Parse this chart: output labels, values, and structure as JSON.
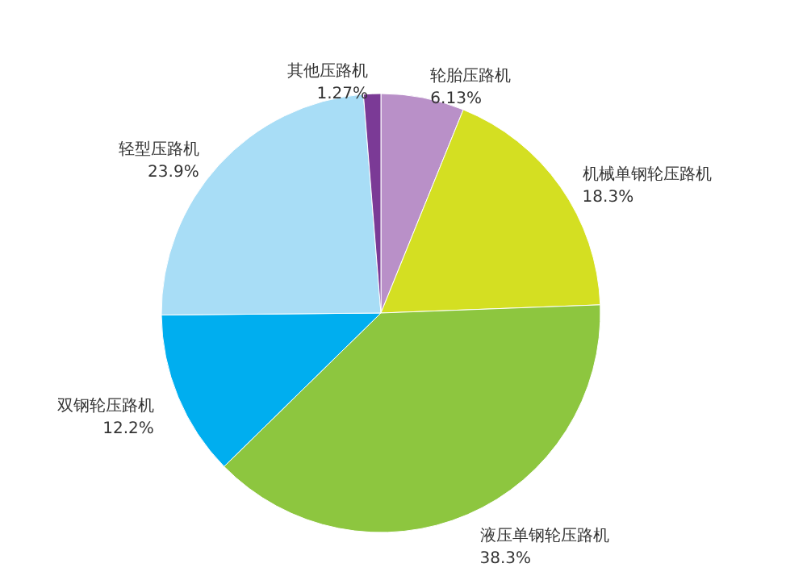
{
  "chart_data": {
    "type": "pie",
    "categories": [
      "轮胎压路机",
      "机械单钢轮压路机",
      "液压单钢轮压路机",
      "双钢轮压路机",
      "轻型压路机",
      "其他压路机"
    ],
    "values": [
      6.13,
      18.3,
      38.3,
      12.2,
      23.9,
      1.27
    ],
    "colors": [
      "#b990c8",
      "#d4df22",
      "#8dc63f",
      "#00aeef",
      "#a8ddf6",
      "#7b3a96"
    ],
    "value_labels": [
      "6.13%",
      "18.3%",
      "38.3%",
      "12.2%",
      "23.9%",
      "1.27%"
    ]
  }
}
